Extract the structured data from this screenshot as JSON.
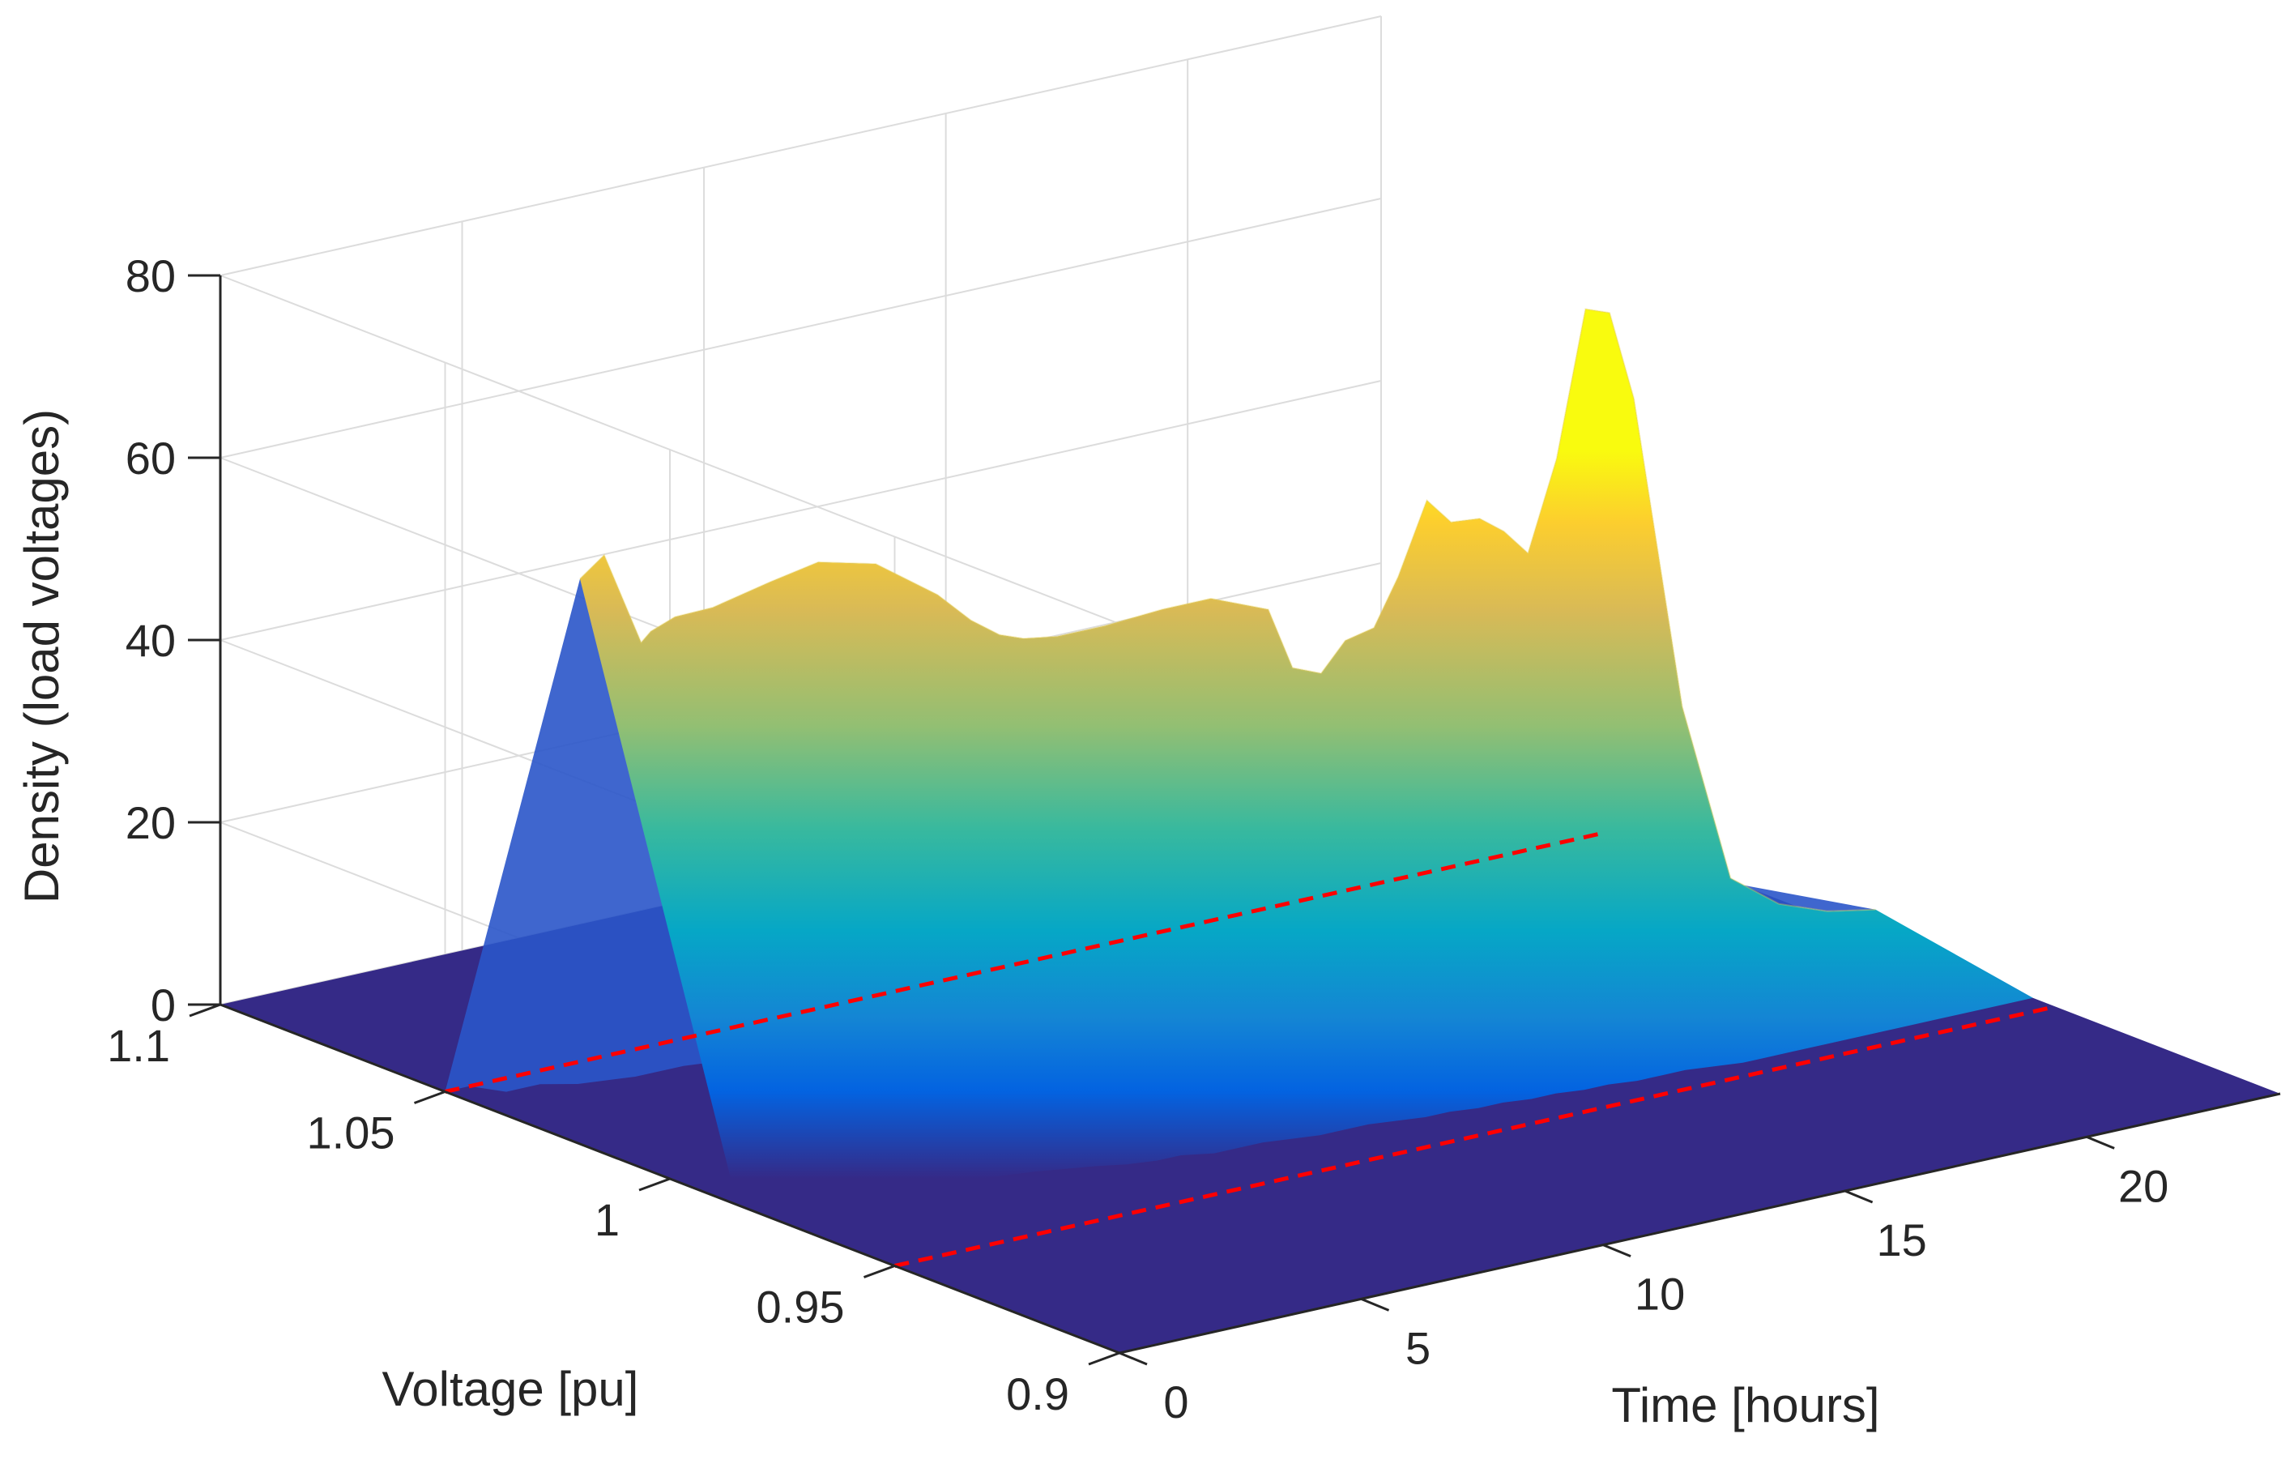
{
  "chart_data": {
    "type": "surface3d",
    "title": "",
    "zlabel": "Density (load voltages)",
    "ylabel": "Voltage [pu]",
    "xlabel": "Time [hours]",
    "z_ticks": [
      "0",
      "20",
      "40",
      "60",
      "80"
    ],
    "y_ticks": [
      "0.9",
      "0.95",
      "1",
      "1.05",
      "1.1"
    ],
    "x_ticks": [
      "0",
      "5",
      "10",
      "15",
      "20"
    ],
    "zlim": [
      0,
      80
    ],
    "ylim": [
      0.9,
      1.1
    ],
    "xlim": [
      0,
      24
    ],
    "grid": true,
    "colormap": "parula",
    "colormap_colors": [
      "#352a87",
      "#0363e1",
      "#1485d4",
      "#06a7c6",
      "#38b99e",
      "#92bf73",
      "#d9ba56",
      "#fcce2e",
      "#f9fb0e"
    ],
    "reference_lines": [
      {
        "style": "dashed",
        "color": "#ff0000",
        "voltage": 1.05
      },
      {
        "style": "dashed",
        "color": "#ff0000",
        "voltage": 0.95
      }
    ],
    "ridge_profile": {
      "time_hours": [
        0,
        0.5,
        0.8,
        1,
        1.5,
        2,
        3,
        4,
        5,
        6,
        6.5,
        7,
        7.5,
        8,
        9,
        10,
        11,
        11.5,
        12,
        12.5,
        13,
        13.5,
        14,
        14.5,
        15,
        15.5,
        16,
        16.5,
        17,
        17.5,
        18,
        18.5,
        19,
        20,
        21,
        22,
        23,
        24
      ],
      "peak_density": [
        62,
        64,
        55,
        56,
        57,
        58,
        60,
        61,
        60,
        56,
        53,
        51,
        50,
        50,
        50,
        51,
        51,
        50,
        49,
        42,
        41,
        44,
        45,
        50,
        58,
        55,
        55,
        53,
        50,
        60,
        76,
        75,
        65,
        30,
        10,
        6,
        4,
        3
      ],
      "peak_voltage_pu": [
        1.02,
        1.02,
        1.015,
        1.015,
        1.015,
        1.012,
        1.01,
        1.01,
        1.008,
        1.005,
        1.003,
        1.002,
        1.002,
        1.0,
        1.0,
        0.998,
        0.998,
        0.997,
        0.996,
        0.996,
        0.995,
        0.995,
        0.994,
        0.994,
        0.993,
        0.993,
        0.992,
        0.992,
        0.992,
        0.991,
        0.99,
        0.99,
        0.99,
        0.99,
        0.99,
        0.99,
        0.99,
        0.99
      ]
    }
  }
}
